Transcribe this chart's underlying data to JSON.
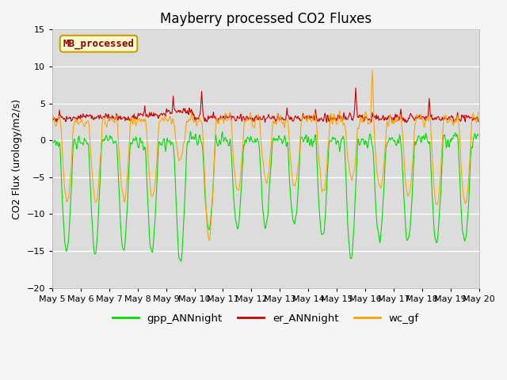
{
  "title": "Mayberry processed CO2 Fluxes",
  "ylabel": "CO2 Flux (urology/m2/s)",
  "ylim": [
    -20,
    15
  ],
  "yticks": [
    -20,
    -15,
    -10,
    -5,
    0,
    5,
    10,
    15
  ],
  "annotation_text": "MB_processed",
  "annotation_color": "#8B0000",
  "annotation_bg": "#FFFACD",
  "annotation_border": "#C8A000",
  "line_gpp_color": "#00DD00",
  "line_er_color": "#CC0000",
  "line_wc_color": "#FFA500",
  "legend_labels": [
    "gpp_ANNnight",
    "er_ANNnight",
    "wc_gf"
  ],
  "background_color": "#DCDCDC",
  "figure_color": "#F5F5F5",
  "n_days": 15,
  "points_per_day": 48,
  "start_day": 5
}
